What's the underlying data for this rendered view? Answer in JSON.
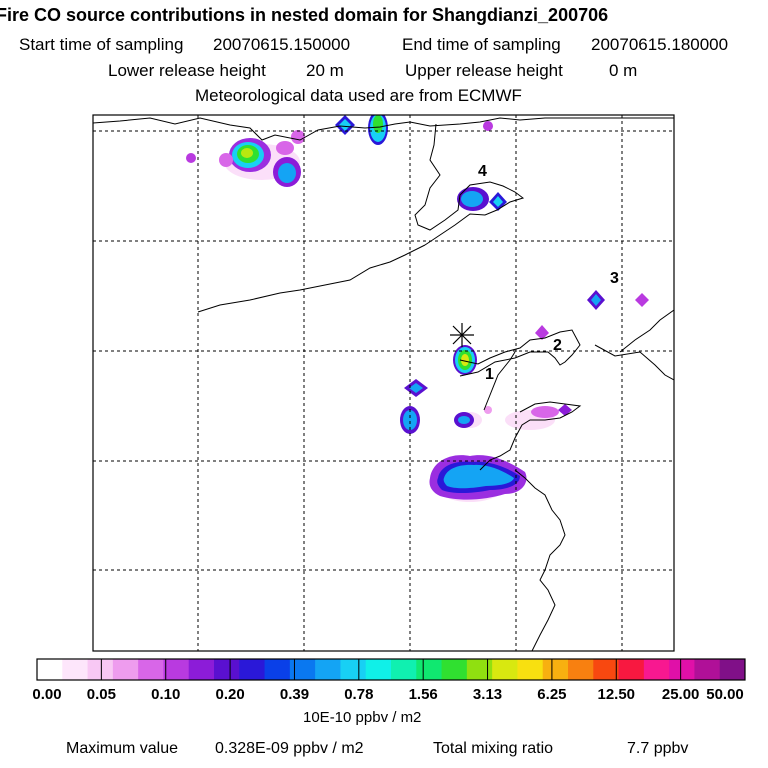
{
  "header": {
    "title": "Fire CO source contributions in nested domain for Shangdianzi_200706",
    "start_label": "Start time of sampling",
    "start_value": "20070615.150000",
    "end_label": "End time of sampling",
    "end_value": "20070615.180000",
    "lower_label": "Lower release height",
    "lower_value": "20 m",
    "upper_label": "Upper release height",
    "upper_value": "0 m",
    "met_line": "Meteorological data used are from ECMWF"
  },
  "map": {
    "site_labels": [
      "1",
      "2",
      "3",
      "4"
    ]
  },
  "colorbar": {
    "labels": [
      "0.00",
      "0.05",
      "0.10",
      "0.20",
      "0.39",
      "0.78",
      "1.56",
      "3.13",
      "6.25",
      "12.50",
      "25.00",
      "50.00"
    ],
    "units": "10E-10 ppbv / m2",
    "colors": [
      "#ffffff",
      "#fde6fb",
      "#f8c8f4",
      "#ee9cee",
      "#d866e8",
      "#b93ae0",
      "#8c1cd8",
      "#5a10d0",
      "#2a18d8",
      "#0a40e8",
      "#0a78f0",
      "#14a4f4",
      "#18d0f4",
      "#10f0e8",
      "#10f0b0",
      "#10e870",
      "#30e030",
      "#90e010",
      "#d8e810",
      "#f8e010",
      "#f8b010",
      "#f88010",
      "#f84810",
      "#f81840",
      "#f81890",
      "#e010a8",
      "#b01098",
      "#801088"
    ]
  },
  "footer": {
    "max_label": "Maximum value",
    "max_value": "0.328E-09 ppbv / m2",
    "total_label": "Total mixing ratio",
    "total_value": "7.7 ppbv"
  }
}
